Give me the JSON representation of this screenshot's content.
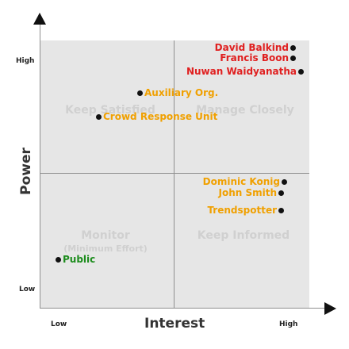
{
  "axes": {
    "y_title": "Power",
    "x_title": "Interest",
    "y_high": "High",
    "y_low": "Low",
    "x_low": "Low",
    "x_high": "High"
  },
  "quadrants": {
    "top_left": "Keep Satisfied",
    "top_right": "Manage Closely",
    "bottom_left": "Monitor",
    "bottom_left_sub": "(Minimum Effort)",
    "bottom_right": "Keep Informed"
  },
  "colors": {
    "red": "#e02020",
    "orange": "#f0a000",
    "green": "#1c8c1c",
    "quadrant_text": "#d0d0d0",
    "plot_bg": "#e6e6e6"
  },
  "stakeholders": [
    {
      "name": "David Balkind",
      "color": "red"
    },
    {
      "name": "Francis Boon",
      "color": "red"
    },
    {
      "name": "Nuwan Waidyanatha",
      "color": "red"
    },
    {
      "name": "Auxiliary Org.",
      "color": "orange"
    },
    {
      "name": "Crowd Response Unit",
      "color": "orange"
    },
    {
      "name": "Dominic Konig",
      "color": "orange"
    },
    {
      "name": "John Smith",
      "color": "orange"
    },
    {
      "name": "Trendspotter",
      "color": "orange"
    },
    {
      "name": "Public",
      "color": "green"
    }
  ]
}
